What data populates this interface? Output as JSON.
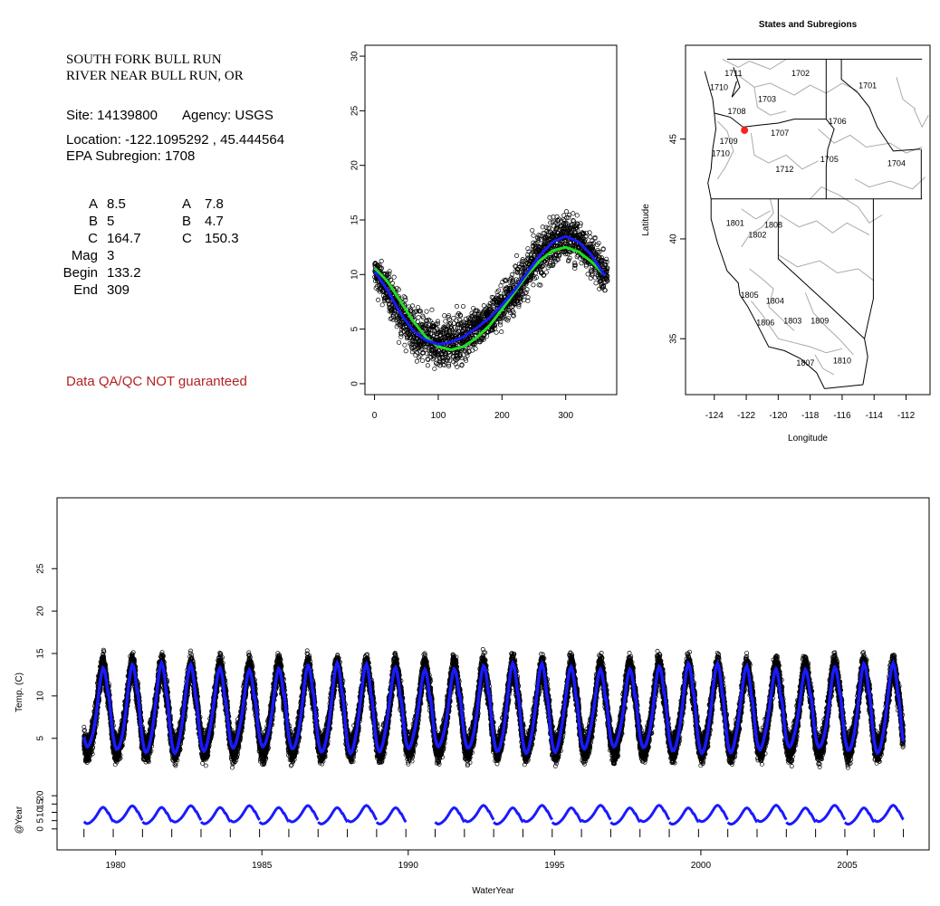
{
  "site": {
    "title_line1": "SOUTH FORK BULL RUN",
    "title_line2": "RIVER NEAR BULL RUN, OR",
    "site_text": "Site: 14139800",
    "agency_text": "Agency: USGS",
    "location_text": "Location: -122.1095292 , 45.444564",
    "subregion_text": "EPA Subregion: 1708"
  },
  "fits": {
    "rows": [
      {
        "label": "A",
        "v1": "8.5",
        "label2": "A",
        "v2": "7.8"
      },
      {
        "label": "B",
        "v1": "5",
        "label2": "B",
        "v2": "4.7"
      },
      {
        "label": "C",
        "v1": "164.7",
        "label2": "C",
        "v2": "150.3"
      },
      {
        "label": "Mag",
        "v1": "3",
        "label2": "",
        "v2": ""
      },
      {
        "label": "Begin",
        "v1": "133.2",
        "label2": "",
        "v2": ""
      },
      {
        "label": "End",
        "v1": "309",
        "label2": "",
        "v2": ""
      }
    ]
  },
  "qa_note": "Data QA/QC NOT guaranteed",
  "colors": {
    "points": "#000000",
    "fit_blue": "#1a1aff",
    "fit_green": "#22dd22",
    "site_marker": "#ff2020",
    "qa_text": "#b22222",
    "map_lines": "#aaaaaa"
  },
  "chart_data": [
    {
      "type": "scatter",
      "id": "seasonal",
      "title": "",
      "xlabel": "",
      "ylabel": "",
      "xlim": [
        -15,
        380
      ],
      "ylim": [
        -1,
        31
      ],
      "xticks": [
        0,
        100,
        200,
        300
      ],
      "yticks": [
        0,
        5,
        10,
        15,
        20,
        25,
        30
      ],
      "series": [
        {
          "type": "scatter",
          "description_points": "daily temperature by day of water year",
          "x": [
            0,
            20,
            40,
            60,
            80,
            100,
            120,
            140,
            160,
            180,
            200,
            220,
            240,
            260,
            280,
            300,
            320,
            340,
            360
          ],
          "y": [
            10.2,
            8.5,
            6.4,
            4.8,
            3.9,
            3.6,
            3.8,
            4.3,
            5.1,
            6.0,
            7.2,
            8.6,
            10.2,
            11.8,
            13.0,
            13.5,
            13.0,
            11.8,
            10.0
          ]
        },
        {
          "type": "line",
          "color": "blue",
          "x": [
            0,
            20,
            40,
            60,
            80,
            100,
            120,
            140,
            160,
            180,
            200,
            220,
            240,
            260,
            280,
            300,
            320,
            340,
            360
          ],
          "y": [
            10.3,
            8.6,
            6.5,
            4.9,
            4.0,
            3.6,
            3.8,
            4.3,
            5.1,
            6.0,
            7.2,
            8.6,
            10.2,
            11.8,
            13.0,
            13.5,
            13.0,
            11.8,
            10.0
          ]
        },
        {
          "type": "line",
          "color": "green",
          "x": [
            0,
            20,
            40,
            60,
            80,
            100,
            120,
            140,
            160,
            180,
            200,
            220,
            240,
            260,
            280,
            300,
            320,
            340,
            360
          ],
          "y": [
            10.6,
            9.4,
            7.6,
            5.8,
            4.3,
            3.4,
            3.1,
            3.4,
            4.2,
            5.3,
            6.8,
            8.4,
            10.0,
            11.3,
            12.2,
            12.5,
            12.1,
            11.2,
            10.0
          ]
        }
      ]
    },
    {
      "type": "map",
      "id": "states-subregions",
      "title": "States and Subregions",
      "xlabel": "Longitude",
      "ylabel": "Latitude",
      "xlim": [
        -125.8,
        -110.5
      ],
      "ylim": [
        32.2,
        49.7
      ],
      "xticks": [
        -124,
        -122,
        -120,
        -118,
        -116,
        -114,
        -112
      ],
      "yticks": [
        35,
        40,
        45
      ],
      "site": {
        "lon": -122.11,
        "lat": 45.44
      },
      "labels": [
        {
          "text": "1711",
          "lon": -122.8,
          "lat": 48.3
        },
        {
          "text": "1702",
          "lon": -118.6,
          "lat": 48.3
        },
        {
          "text": "1701",
          "lon": -114.4,
          "lat": 47.7
        },
        {
          "text": "1710",
          "lon": -123.7,
          "lat": 47.6
        },
        {
          "text": "1703",
          "lon": -120.7,
          "lat": 47.0
        },
        {
          "text": "1708",
          "lon": -122.6,
          "lat": 46.4
        },
        {
          "text": "1706",
          "lon": -116.3,
          "lat": 45.9
        },
        {
          "text": "1707",
          "lon": -119.9,
          "lat": 45.3
        },
        {
          "text": "1709",
          "lon": -123.1,
          "lat": 44.9
        },
        {
          "text": "1710",
          "lon": -123.6,
          "lat": 44.3
        },
        {
          "text": "1705",
          "lon": -116.8,
          "lat": 44.0
        },
        {
          "text": "1704",
          "lon": -112.6,
          "lat": 43.8
        },
        {
          "text": "1712",
          "lon": -119.6,
          "lat": 43.5
        },
        {
          "text": "1801",
          "lon": -122.7,
          "lat": 40.8
        },
        {
          "text": "1808",
          "lon": -120.3,
          "lat": 40.7
        },
        {
          "text": "1802",
          "lon": -121.3,
          "lat": 40.2
        },
        {
          "text": "1805",
          "lon": -121.8,
          "lat": 37.2
        },
        {
          "text": "1804",
          "lon": -120.2,
          "lat": 36.9
        },
        {
          "text": "1806",
          "lon": -120.8,
          "lat": 35.8
        },
        {
          "text": "1803",
          "lon": -119.1,
          "lat": 35.9
        },
        {
          "text": "1809",
          "lon": -117.4,
          "lat": 35.9
        },
        {
          "text": "1807",
          "lon": -118.3,
          "lat": 33.8
        },
        {
          "text": "1810",
          "lon": -116.0,
          "lat": 33.9
        }
      ]
    },
    {
      "type": "scatter",
      "id": "timeseries",
      "title": "",
      "xlabel": "WaterYear",
      "ylabel": "Temp. (C)",
      "xlim": [
        1978.0,
        2007.8
      ],
      "ylim": [
        -1,
        31
      ],
      "xticks": [
        1980,
        1985,
        1990,
        1995,
        2000,
        2005
      ],
      "yticks": [
        5,
        10,
        15,
        20,
        25
      ],
      "time_range": [
        1978.92,
        2006.92
      ],
      "series": [
        {
          "type": "scatter",
          "description_points": "daily observed water temperature"
        },
        {
          "type": "line",
          "color": "blue",
          "description_points": "fitted seasonal curve"
        }
      ]
    },
    {
      "type": "line",
      "id": "yearly-fits",
      "title": "",
      "xlabel": "",
      "ylabel": "@Year",
      "xlim": [
        1978.0,
        2007.8
      ],
      "ylim": [
        -5,
        25
      ],
      "yticks": [
        0,
        5,
        10,
        15,
        20
      ],
      "gap_years": [
        1989
      ],
      "time_range": [
        1978.92,
        2006.92
      ]
    }
  ]
}
